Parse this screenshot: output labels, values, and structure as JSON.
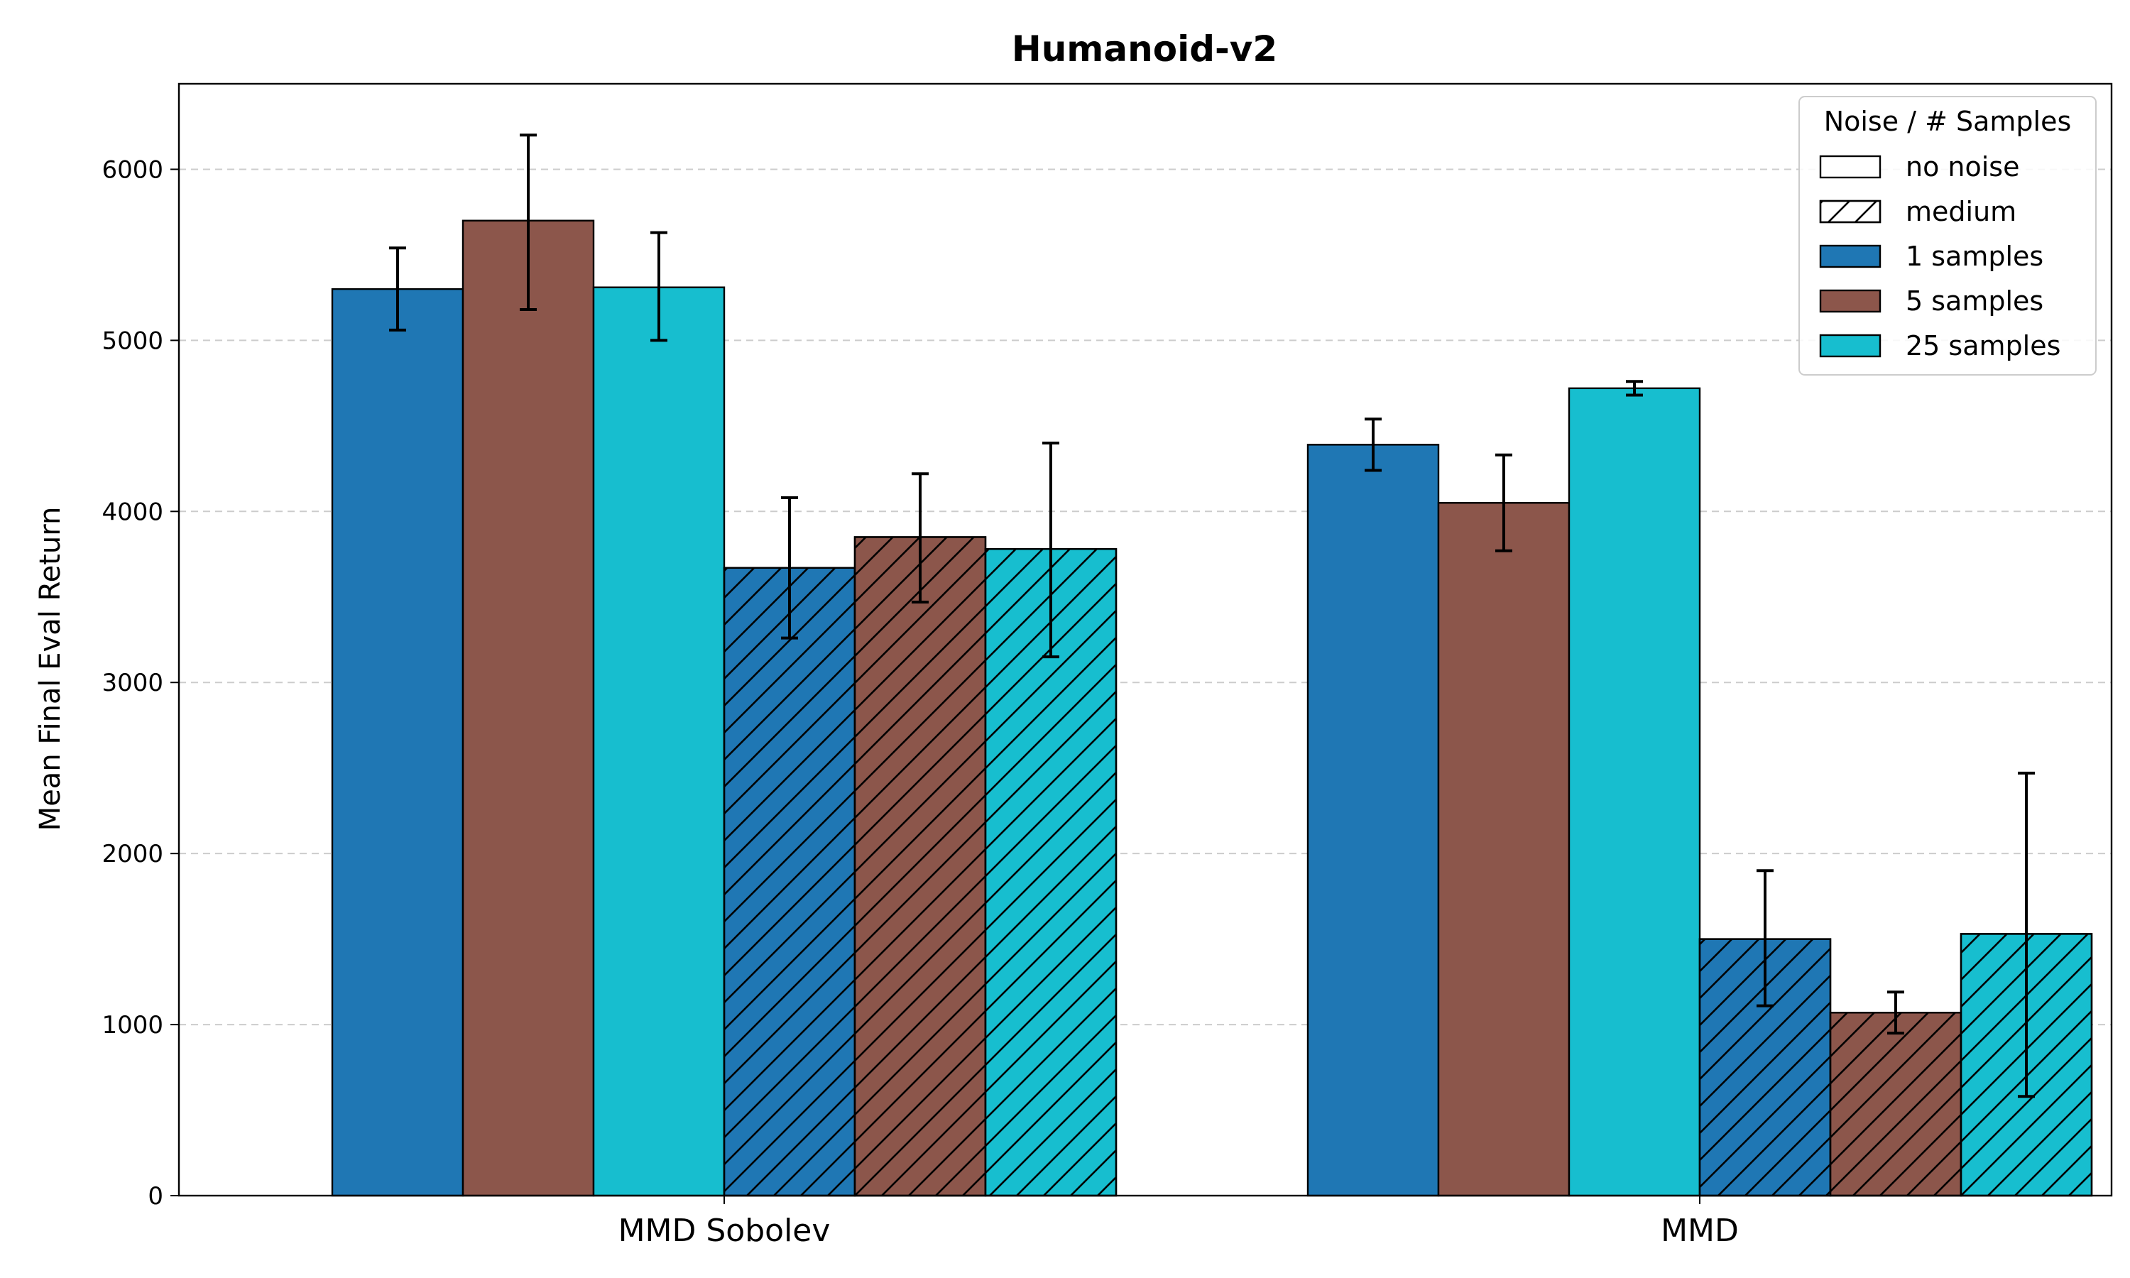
{
  "chart_data": {
    "type": "bar",
    "title": "Humanoid-v2",
    "xlabel": "",
    "ylabel": "Mean Final Eval Return",
    "ylim": [
      0,
      6500
    ],
    "yticks": [
      0,
      1000,
      2000,
      3000,
      4000,
      5000,
      6000
    ],
    "grid": "y-dashed",
    "categories": [
      "MMD Sobolev",
      "MMD"
    ],
    "series": [
      {
        "name": "1 samples / no noise",
        "samples": "1 samples",
        "noise": "no noise",
        "color": "#1f77b4",
        "values": [
          5300,
          4390
        ],
        "errors": [
          [
            5060,
            5540
          ],
          [
            4240,
            4540
          ]
        ]
      },
      {
        "name": "5 samples / no noise",
        "samples": "5 samples",
        "noise": "no noise",
        "color": "#8c564b",
        "values": [
          5700,
          4050
        ],
        "errors": [
          [
            5180,
            6200
          ],
          [
            3770,
            4330
          ]
        ]
      },
      {
        "name": "25 samples / no noise",
        "samples": "25 samples",
        "noise": "no noise",
        "color": "#17becf",
        "values": [
          5310,
          4720
        ],
        "errors": [
          [
            5000,
            5630
          ],
          [
            4680,
            4760
          ]
        ]
      },
      {
        "name": "1 samples / medium",
        "samples": "1 samples",
        "noise": "medium",
        "color": "#1f77b4",
        "values": [
          3670,
          1500
        ],
        "errors": [
          [
            3260,
            4080
          ],
          [
            1110,
            1900
          ]
        ]
      },
      {
        "name": "5 samples / medium",
        "samples": "5 samples",
        "noise": "medium",
        "color": "#8c564b",
        "values": [
          3850,
          1070
        ],
        "errors": [
          [
            3470,
            4220
          ],
          [
            950,
            1190
          ]
        ]
      },
      {
        "name": "25 samples / medium",
        "samples": "25 samples",
        "noise": "medium",
        "color": "#17becf",
        "values": [
          3780,
          1530
        ],
        "errors": [
          [
            3150,
            4400
          ],
          [
            580,
            2470
          ]
        ]
      }
    ],
    "legend": {
      "position": "top-right",
      "title": "Noise / # Samples",
      "entries": [
        {
          "label": "no noise",
          "fill": "#ffffff",
          "hatch": false
        },
        {
          "label": "medium",
          "fill": "#ffffff",
          "hatch": true
        },
        {
          "label": "1 samples",
          "fill": "#1f77b4",
          "hatch": false
        },
        {
          "label": "5 samples",
          "fill": "#8c564b",
          "hatch": false
        },
        {
          "label": "25 samples",
          "fill": "#17becf",
          "hatch": false
        }
      ]
    }
  }
}
